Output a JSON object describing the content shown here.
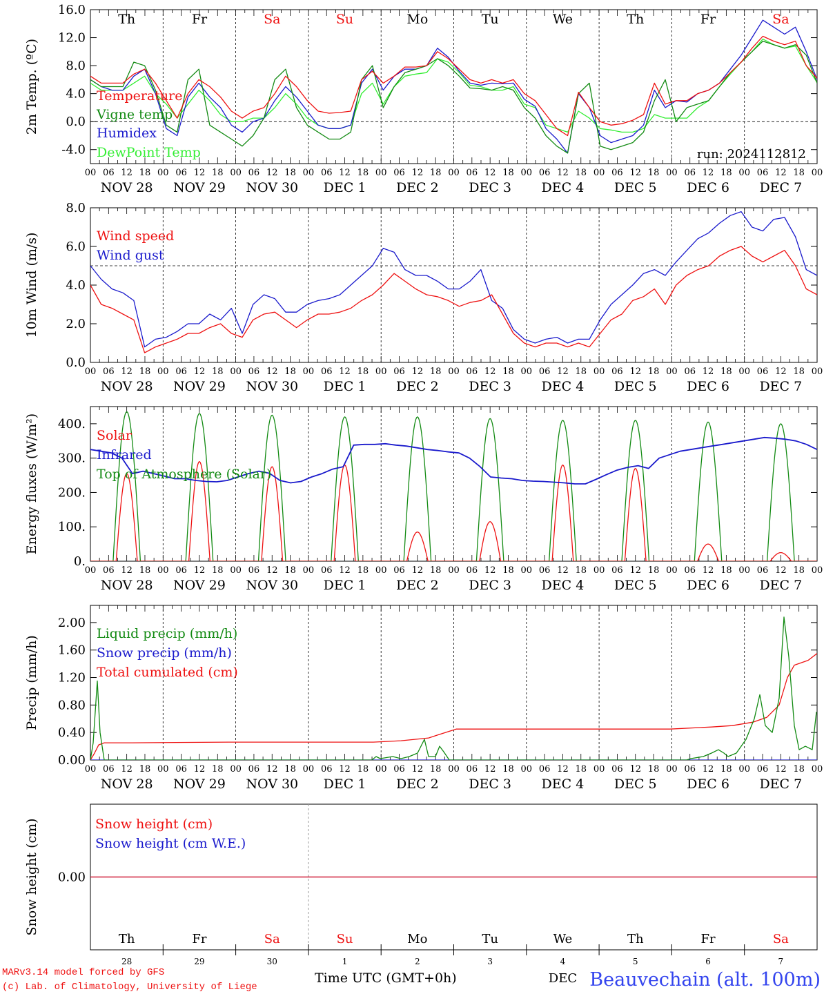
{
  "chart_data": [
    {
      "type": "line",
      "ylabel": "2m Temp. (ºC)",
      "ylim": [
        -6,
        16
      ],
      "yticks": [
        -4,
        0,
        4,
        8,
        12,
        16
      ],
      "ytick_labels": [
        "-4.0",
        "0.0",
        "4.0",
        "8.0",
        "12.0",
        "16.0"
      ],
      "dashed_reference": 0,
      "run_label": "run: 2024112812",
      "series": [
        {
          "name": "Temperature",
          "color": "#ee1111",
          "values": [
            6.5,
            5.5,
            5.5,
            5.5,
            6.8,
            7.5,
            5.5,
            3,
            0.5,
            4,
            6,
            5,
            3.5,
            1.5,
            0.5,
            1.5,
            2,
            4,
            6.5,
            5,
            3,
            1.5,
            1.2,
            1.3,
            1.5,
            6,
            7.2,
            5.5,
            6.5,
            7.8,
            7.8,
            8,
            10,
            9,
            7.5,
            6,
            5.5,
            6,
            5.5,
            6,
            4,
            3,
            1,
            -1,
            -2,
            4.2,
            2,
            0,
            -0.5,
            -0.3,
            0.2,
            1,
            5.5,
            2.5,
            3,
            3,
            4,
            4.5,
            5.5,
            7,
            8.5,
            10.5,
            12.2,
            11.5,
            11,
            11.5,
            8,
            6.2
          ]
        },
        {
          "name": "Vigne temp",
          "color": "#128a12",
          "values": [
            6,
            5,
            5,
            5,
            8.5,
            8,
            4.5,
            -0.5,
            -1.5,
            6,
            7.5,
            -0.5,
            -1.5,
            -2.5,
            -3.5,
            -2,
            0.5,
            6,
            7.5,
            2,
            -0.5,
            -1.5,
            -2.5,
            -2.5,
            -1.5,
            6,
            8,
            2,
            5,
            7,
            7.5,
            8,
            9,
            8,
            6.5,
            4.8,
            4.7,
            4.5,
            5,
            4.5,
            2,
            0.5,
            -2,
            -3.5,
            -4.5,
            4,
            5.5,
            -3.5,
            -4,
            -3.5,
            -3,
            -1.5,
            3,
            6,
            0,
            2,
            2.5,
            3,
            5,
            7,
            8.5,
            10,
            11.5,
            11,
            10.5,
            11,
            9.5,
            5.5
          ]
        },
        {
          "name": "Humidex",
          "color": "#1a1acc",
          "values": [
            6,
            5,
            4.5,
            4.5,
            6.5,
            7.5,
            4,
            -1,
            -2,
            3.5,
            5.5,
            3.5,
            2,
            -0.5,
            -1.5,
            0,
            0.5,
            3,
            5,
            3.5,
            1.5,
            -0.5,
            -1,
            -1,
            -0.5,
            5.5,
            7.5,
            4.5,
            6.5,
            7.5,
            7.5,
            8,
            10.5,
            9.2,
            7.2,
            5.5,
            5.2,
            5.5,
            5.4,
            5.5,
            3.2,
            2.2,
            -1,
            -2.5,
            -4.5,
            4,
            2,
            -2,
            -3,
            -2.5,
            -2,
            -0.5,
            4.5,
            2,
            3,
            2.8,
            4,
            4.5,
            5.5,
            7.5,
            9.5,
            12,
            14.5,
            13.5,
            12.5,
            13.5,
            10,
            6
          ]
        },
        {
          "name": "DewPoint Temp",
          "color": "#33ee33",
          "values": [
            5.5,
            4.5,
            4.5,
            4.5,
            5.5,
            6.5,
            4,
            2.5,
            0.5,
            2.5,
            4.5,
            3,
            1,
            0,
            0,
            0.5,
            0.5,
            2,
            4,
            2.5,
            0.5,
            -0.5,
            -1,
            -1,
            -0.5,
            4,
            5.5,
            2.5,
            5,
            6.5,
            6.8,
            7,
            9,
            8.5,
            7,
            5.2,
            5,
            4.5,
            4.5,
            5,
            2.5,
            2,
            -0.5,
            -1,
            -1.5,
            1.5,
            0.5,
            -1,
            -1.2,
            -1.5,
            -1.5,
            -1,
            1,
            0.5,
            0.5,
            0.5,
            2,
            3,
            5,
            6.8,
            8.5,
            10,
            11.8,
            11,
            10.5,
            10.8,
            8,
            5.6
          ]
        }
      ]
    },
    {
      "type": "line",
      "ylabel": "10m Wind (m/s)",
      "ylim": [
        0,
        8
      ],
      "yticks": [
        0,
        2,
        4,
        6,
        8
      ],
      "ytick_labels": [
        "0.0",
        "2.0",
        "4.0",
        "6.0",
        "8.0"
      ],
      "dashed_reference": 5,
      "series": [
        {
          "name": "Wind speed",
          "color": "#ee1111",
          "values": [
            4,
            3,
            2.8,
            2.5,
            2.2,
            0.5,
            0.8,
            1,
            1.2,
            1.5,
            1.5,
            1.8,
            2,
            1.5,
            1.3,
            2.2,
            2.5,
            2.6,
            2.2,
            1.8,
            2.2,
            2.5,
            2.5,
            2.6,
            2.8,
            3.2,
            3.5,
            4,
            4.6,
            4.2,
            3.8,
            3.5,
            3.4,
            3.2,
            2.9,
            3.1,
            3.2,
            3.5,
            2.5,
            1.5,
            1,
            0.8,
            1,
            1,
            0.8,
            1,
            0.8,
            1.5,
            2.2,
            2.5,
            3.2,
            3.4,
            3.8,
            3,
            4,
            4.5,
            4.8,
            5,
            5.5,
            5.8,
            6,
            5.5,
            5.2,
            5.5,
            5.8,
            5,
            3.8,
            3.5
          ]
        },
        {
          "name": "Wind gust",
          "color": "#1a1acc",
          "values": [
            5,
            4.3,
            3.8,
            3.6,
            3.2,
            0.8,
            1.2,
            1.3,
            1.6,
            2,
            2,
            2.5,
            2.2,
            2.8,
            1.5,
            3,
            3.5,
            3.3,
            2.6,
            2.6,
            3,
            3.2,
            3.3,
            3.5,
            4,
            4.5,
            5,
            5.9,
            5.7,
            4.8,
            4.5,
            4.5,
            4.2,
            3.8,
            3.8,
            4.2,
            4.8,
            3.2,
            2.8,
            1.7,
            1.2,
            1,
            1.2,
            1.3,
            1,
            1.2,
            1.2,
            2.2,
            3,
            3.5,
            4,
            4.6,
            4.8,
            4.5,
            5.2,
            5.8,
            6.4,
            6.7,
            7.2,
            7.6,
            7.8,
            7,
            6.8,
            7.4,
            7.5,
            6.5,
            4.8,
            4.5
          ]
        }
      ]
    },
    {
      "type": "line",
      "ylabel": "Energy fluxes (W/m²)",
      "ylim": [
        0,
        450
      ],
      "yticks": [
        0,
        100,
        200,
        300,
        400
      ],
      "ytick_labels": [
        "0.",
        "100.",
        "200.",
        "300.",
        "400."
      ],
      "series": [
        {
          "name": "Solar",
          "color": "#ee1111",
          "day_peaks": [
            255,
            290,
            275,
            280,
            85,
            115,
            280,
            270,
            50,
            25
          ]
        },
        {
          "name": "Infrared",
          "color": "#1a1acc",
          "values": [
            325,
            320,
            315,
            300,
            255,
            262,
            255,
            248,
            240,
            240,
            235,
            232,
            231,
            235,
            245,
            255,
            262,
            256,
            235,
            228,
            232,
            245,
            255,
            268,
            275,
            338,
            340,
            340,
            342,
            338,
            335,
            330,
            325,
            322,
            318,
            315,
            300,
            275,
            245,
            242,
            240,
            235,
            233,
            232,
            230,
            228,
            225,
            225,
            238,
            252,
            265,
            273,
            278,
            270,
            300,
            310,
            320,
            325,
            330,
            335,
            340,
            345,
            350,
            355,
            360,
            358,
            355,
            350,
            340,
            325
          ]
        },
        {
          "name": "Top of Atmosphere (Solar)",
          "color": "#128a12",
          "day_peaks": [
            435,
            430,
            425,
            420,
            420,
            415,
            410,
            410,
            405,
            400
          ]
        }
      ]
    },
    {
      "type": "line",
      "ylabel": "Precip (mm/h)",
      "ylim": [
        0,
        2.25
      ],
      "yticks": [
        0,
        0.4,
        0.8,
        1.2,
        1.6,
        2.0
      ],
      "ytick_labels": [
        "0.00",
        "0.40",
        "0.80",
        "1.20",
        "1.60",
        "2.00"
      ],
      "series": [
        {
          "name": "Liquid precip (mm/h)",
          "color": "#128a12",
          "points": [
            [
              0,
              0
            ],
            [
              4,
              0.25
            ],
            [
              10,
              1.15
            ],
            [
              14,
              0.4
            ],
            [
              20,
              0
            ],
            [
              408,
              0
            ],
            [
              414,
              0.05
            ],
            [
              420,
              0.02
            ],
            [
              438,
              0.05
            ],
            [
              450,
              0.02
            ],
            [
              462,
              0.05
            ],
            [
              474,
              0.1
            ],
            [
              484,
              0.3
            ],
            [
              490,
              0.05
            ],
            [
              500,
              0.05
            ],
            [
              506,
              0.2
            ],
            [
              512,
              0.12
            ],
            [
              520,
              0
            ],
            [
              864,
              0
            ],
            [
              870,
              0.02
            ],
            [
              888,
              0.05
            ],
            [
              900,
              0.1
            ],
            [
              910,
              0.15
            ],
            [
              918,
              0.1
            ],
            [
              924,
              0.05
            ],
            [
              936,
              0.1
            ],
            [
              950,
              0.3
            ],
            [
              962,
              0.6
            ],
            [
              970,
              0.95
            ],
            [
              978,
              0.5
            ],
            [
              988,
              0.4
            ],
            [
              998,
              0.9
            ],
            [
              1005,
              2.08
            ],
            [
              1012,
              1.5
            ],
            [
              1020,
              0.5
            ],
            [
              1027,
              0.15
            ],
            [
              1036,
              0.2
            ],
            [
              1046,
              0.15
            ],
            [
              1052,
              0.7
            ]
          ]
        },
        {
          "name": "Snow precip (mm/h)",
          "color": "#1a1acc",
          "points": [
            [
              0,
              0
            ],
            [
              1053,
              0
            ]
          ]
        },
        {
          "name": "Total cumulated (cm)",
          "color": "#ee1111",
          "points": [
            [
              0,
              0
            ],
            [
              6,
              0.1
            ],
            [
              12,
              0.22
            ],
            [
              20,
              0.25
            ],
            [
              60,
              0.25
            ],
            [
              200,
              0.26
            ],
            [
              410,
              0.26
            ],
            [
              450,
              0.28
            ],
            [
              490,
              0.32
            ],
            [
              508,
              0.38
            ],
            [
              530,
              0.45
            ],
            [
              840,
              0.45
            ],
            [
              900,
              0.48
            ],
            [
              930,
              0.5
            ],
            [
              960,
              0.55
            ],
            [
              980,
              0.62
            ],
            [
              998,
              0.8
            ],
            [
              1010,
              1.2
            ],
            [
              1020,
              1.38
            ],
            [
              1040,
              1.45
            ],
            [
              1053,
              1.55
            ]
          ]
        }
      ]
    },
    {
      "type": "line",
      "ylabel": "Snow height (cm)",
      "ylim": [
        -1,
        1
      ],
      "yticks": [
        0
      ],
      "ytick_labels": [
        "0.00"
      ],
      "series": [
        {
          "name": "Snow height (cm)",
          "color": "#ee1111",
          "values": [
            0,
            0
          ]
        },
        {
          "name": "Snow height (cm W.E.)",
          "color": "#1a1acc",
          "values": [
            0,
            0
          ]
        }
      ]
    }
  ],
  "axis": {
    "weekdays": [
      "Th",
      "Fr",
      "Sa",
      "Su",
      "Mo",
      "Tu",
      "We",
      "Th",
      "Fr",
      "Sa"
    ],
    "weekend_flags": [
      false,
      false,
      true,
      true,
      false,
      false,
      false,
      false,
      false,
      true
    ],
    "date_labels": [
      "NOV 28",
      "NOV 29",
      "NOV 30",
      "DEC  1",
      "DEC  2",
      "DEC  3",
      "DEC  4",
      "DEC  5",
      "DEC  6",
      "DEC  7"
    ],
    "hour_labels": [
      "00",
      "06",
      "12",
      "18"
    ],
    "final_hour_label": "00",
    "day_numbers": [
      "28",
      "29",
      "30",
      "1",
      "2",
      "3",
      "4",
      "5",
      "6",
      "7"
    ],
    "month_label": "DEC",
    "time_axis_label": "Time UTC (GMT+0h)"
  },
  "colors": {
    "red": "#ee1111",
    "weekend": "#ee1111",
    "green": "#128a12",
    "blue": "#1a1acc",
    "light_green": "#33ee33",
    "station": "#3344ee",
    "credit": "#ee1111"
  },
  "footer": {
    "credit_line1": "MARv3.14 model forced by GFS",
    "credit_line2": "(c) Lab. of Climatology, University of Liege",
    "station": "Beauvechain (alt. 100m)"
  }
}
